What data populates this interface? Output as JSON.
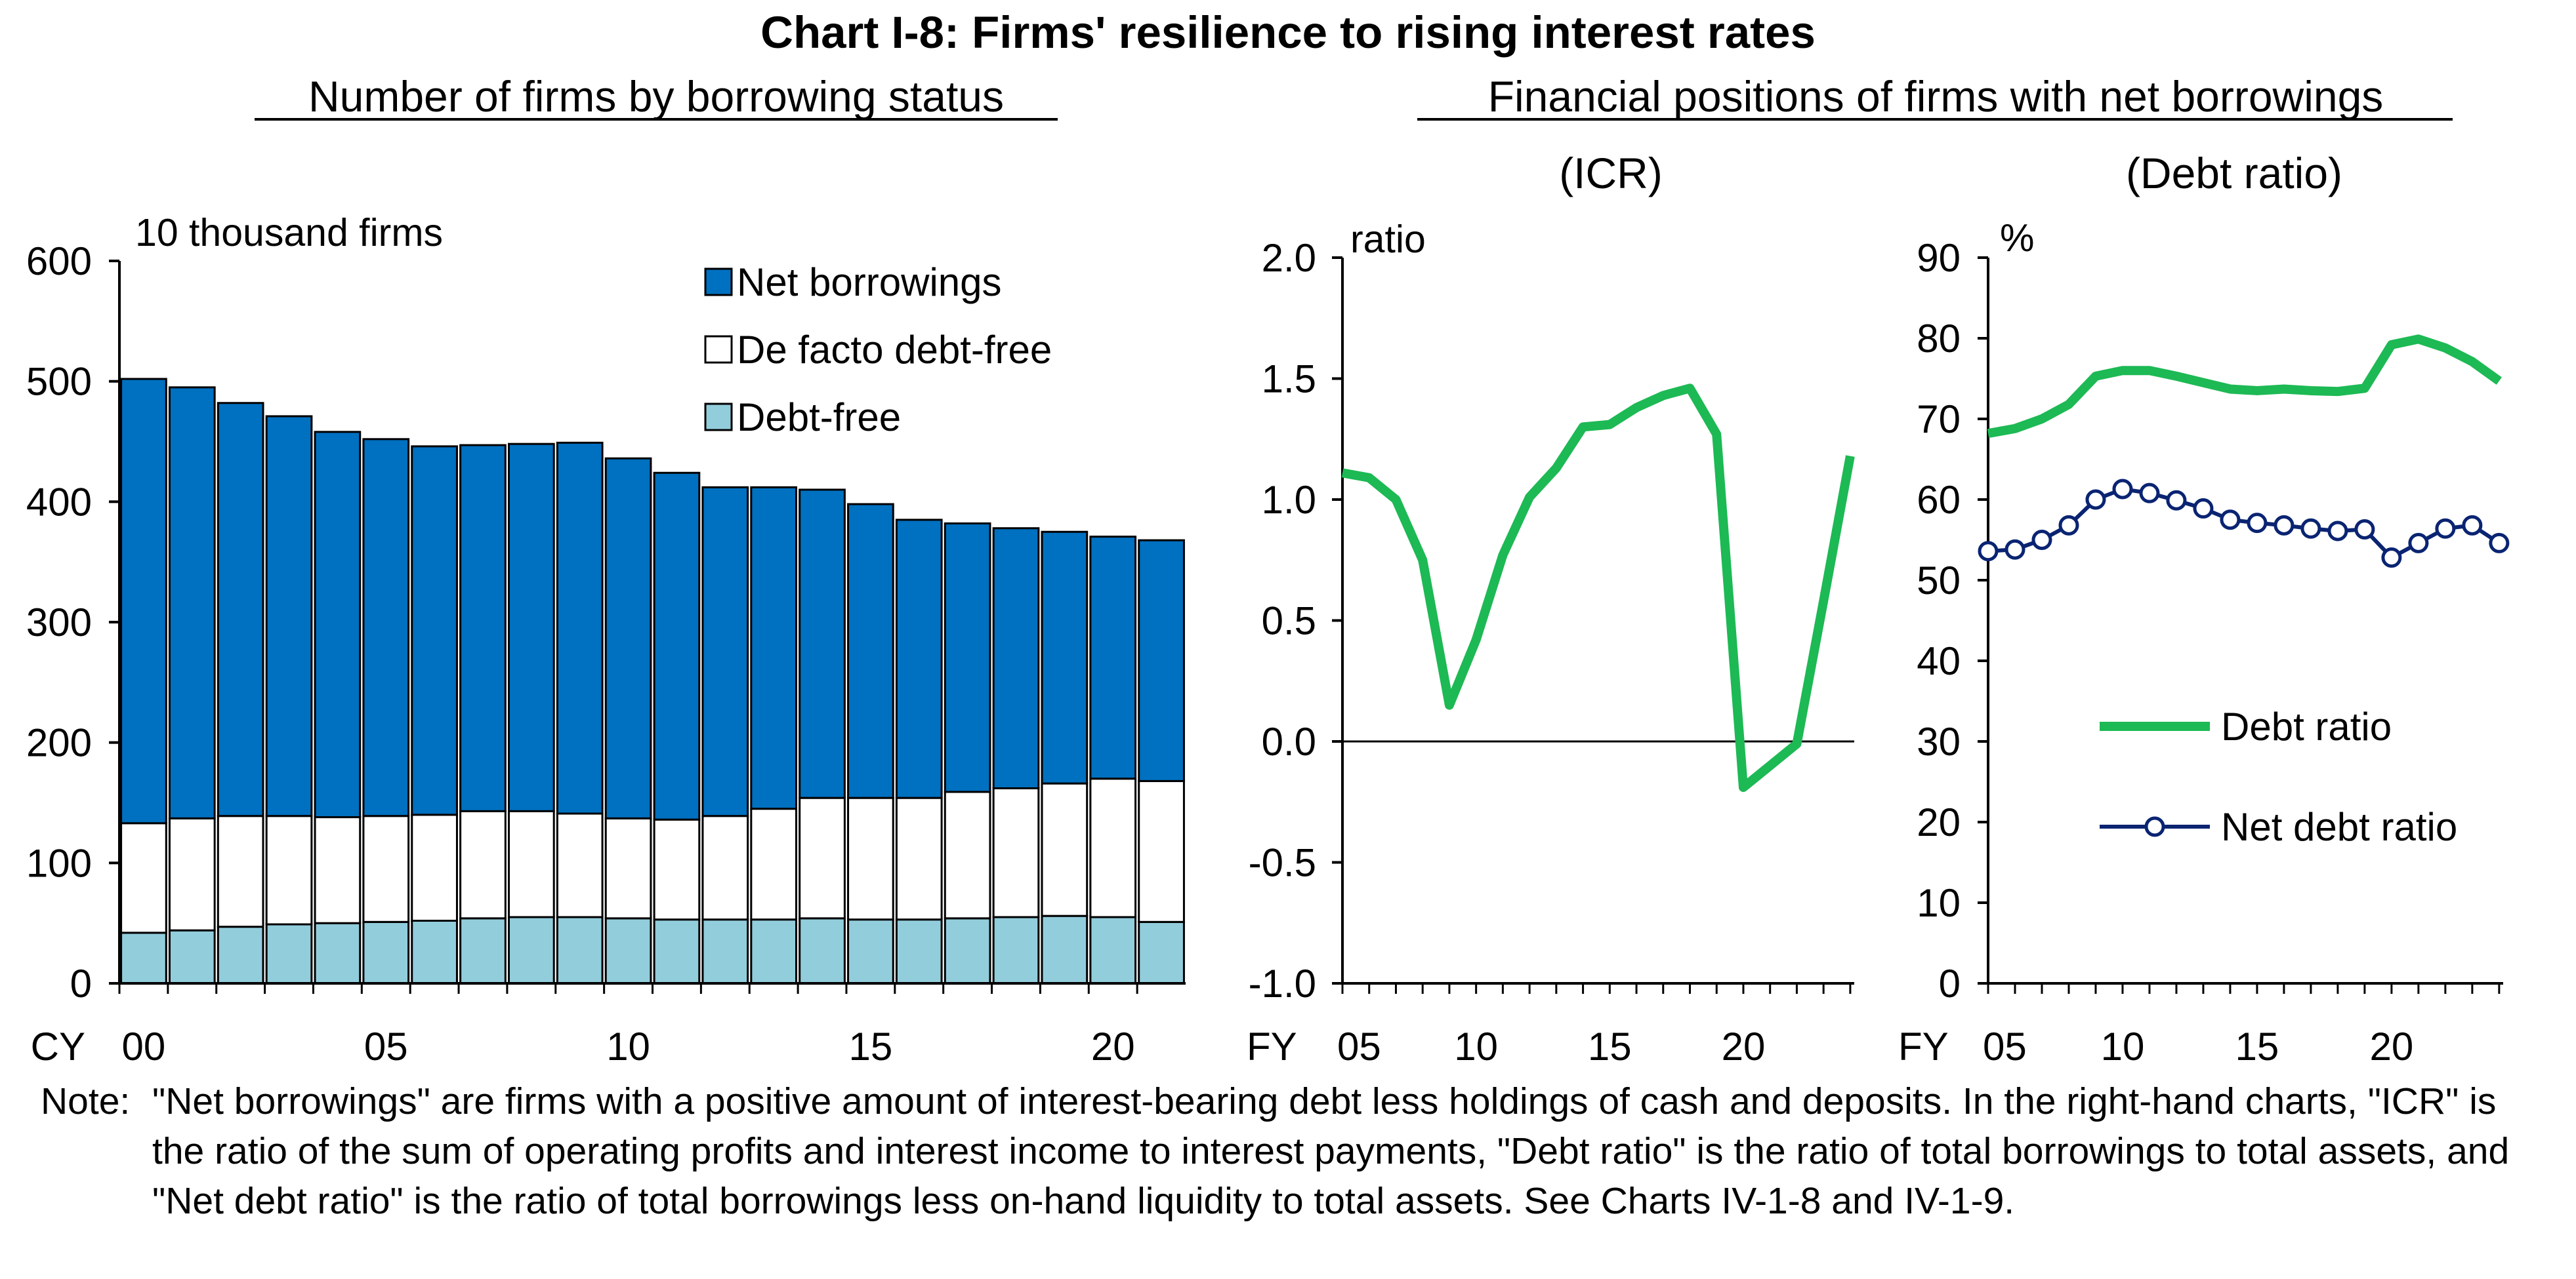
{
  "title": "Chart I-8: Firms' resilience to rising interest rates",
  "left_subtitle": "Number of firms by borrowing status",
  "right_subtitle": "Financial positions of firms with net borrowings",
  "note": {
    "label": "Note:",
    "text": "\"Net borrowings\" are firms with a positive amount of interest-bearing debt less holdings of cash and deposits. In the right-hand charts, \"ICR\" is the ratio of the sum of operating profits and interest income to interest payments, \"Debt ratio\" is the ratio of total borrowings to total assets, and \"Net debt ratio\" is the ratio of total borrowings less on-hand liquidity to total assets. See Charts IV-1-8 and IV-1-9."
  },
  "colors": {
    "net_borrowings": "#0070C0",
    "de_facto_debt_free": "#FFFFFF",
    "debt_free": "#92CDDC",
    "debt_ratio_line": "#1DB954",
    "net_debt_ratio_line": "#0A2472"
  },
  "chart_data": [
    {
      "type": "bar",
      "stacked": true,
      "unit_label": "10 thousand firms",
      "ylim": [
        0,
        600
      ],
      "yticks": [
        "0",
        "100",
        "200",
        "300",
        "400",
        "500",
        "600"
      ],
      "x_prefix": "CY",
      "xticks": [
        {
          "year": 2000,
          "label": "00"
        },
        {
          "year": 2005,
          "label": "05"
        },
        {
          "year": 2010,
          "label": "10"
        },
        {
          "year": 2015,
          "label": "15"
        },
        {
          "year": 2020,
          "label": "20"
        }
      ],
      "categories": [
        2000,
        2001,
        2002,
        2003,
        2004,
        2005,
        2006,
        2007,
        2008,
        2009,
        2010,
        2011,
        2012,
        2013,
        2014,
        2015,
        2016,
        2017,
        2018,
        2019,
        2020,
        2021
      ],
      "series": [
        {
          "name": "Debt-free",
          "values": [
            42,
            44,
            47,
            49,
            50,
            51,
            52,
            54,
            55,
            55,
            54,
            53,
            53,
            53,
            54,
            53,
            53,
            54,
            55,
            56,
            55,
            51
          ]
        },
        {
          "name": "De facto debt-free",
          "values": [
            91,
            93,
            92,
            90,
            88,
            88,
            88,
            89,
            88,
            86,
            83,
            83,
            86,
            92,
            100,
            101,
            101,
            105,
            107,
            110,
            115,
            117
          ]
        },
        {
          "name": "Net borrowings",
          "values": [
            369,
            358,
            343,
            332,
            320,
            313,
            306,
            304,
            305,
            308,
            299,
            288,
            273,
            267,
            256,
            244,
            231,
            223,
            216,
            209,
            201,
            200
          ]
        }
      ],
      "legend_order": [
        "Net borrowings",
        "De facto debt-free",
        "Debt-free"
      ],
      "legend_position": "top-right"
    },
    {
      "type": "line",
      "subtitle": "(ICR)",
      "unit_label": "ratio",
      "ylim": [
        -1.0,
        2.0
      ],
      "yticks": [
        "-1.0",
        "-0.5",
        "0.0",
        "0.5",
        "1.0",
        "1.5",
        "2.0"
      ],
      "x_prefix": "FY",
      "xticks": [
        {
          "year": 2005,
          "label": "05"
        },
        {
          "year": 2010,
          "label": "10"
        },
        {
          "year": 2015,
          "label": "15"
        },
        {
          "year": 2020,
          "label": "20"
        }
      ],
      "x": [
        2005,
        2006,
        2007,
        2008,
        2009,
        2010,
        2011,
        2012,
        2013,
        2014,
        2015,
        2016,
        2017,
        2018,
        2019,
        2020,
        2021,
        2022,
        2023,
        2024
      ],
      "series": [
        {
          "values": [
            1.11,
            1.09,
            1.0,
            0.75,
            0.15,
            0.42,
            0.77,
            1.01,
            1.13,
            1.3,
            1.31,
            1.38,
            1.43,
            1.46,
            1.27,
            -0.19,
            -0.1,
            -0.01,
            0.58,
            1.18
          ]
        }
      ]
    },
    {
      "type": "line",
      "subtitle": "(Debt ratio)",
      "unit_label": "%",
      "ylim": [
        0,
        90
      ],
      "yticks": [
        "0",
        "10",
        "20",
        "30",
        "40",
        "50",
        "60",
        "70",
        "80",
        "90"
      ],
      "x_prefix": "FY",
      "xticks": [
        {
          "year": 2005,
          "label": "05"
        },
        {
          "year": 2010,
          "label": "10"
        },
        {
          "year": 2015,
          "label": "15"
        },
        {
          "year": 2020,
          "label": "20"
        }
      ],
      "x": [
        2005,
        2006,
        2007,
        2008,
        2009,
        2010,
        2011,
        2012,
        2013,
        2014,
        2015,
        2016,
        2017,
        2018,
        2019,
        2020,
        2021,
        2022,
        2023,
        2024
      ],
      "series": [
        {
          "name": "Debt ratio",
          "values": [
            68.2,
            68.8,
            70.0,
            71.8,
            75.3,
            76.0,
            76.0,
            75.3,
            74.5,
            73.7,
            73.5,
            73.7,
            73.5,
            73.4,
            73.8,
            79.2,
            79.9,
            78.8,
            77.1,
            74.7
          ]
        },
        {
          "name": "Net debt ratio",
          "values": [
            53.6,
            53.8,
            55.0,
            56.8,
            60.0,
            61.3,
            60.8,
            59.9,
            58.9,
            57.5,
            57.1,
            56.8,
            56.4,
            56.1,
            56.3,
            52.8,
            54.6,
            56.4,
            56.8,
            54.6
          ]
        }
      ],
      "legend_position": "lower-middle"
    }
  ]
}
